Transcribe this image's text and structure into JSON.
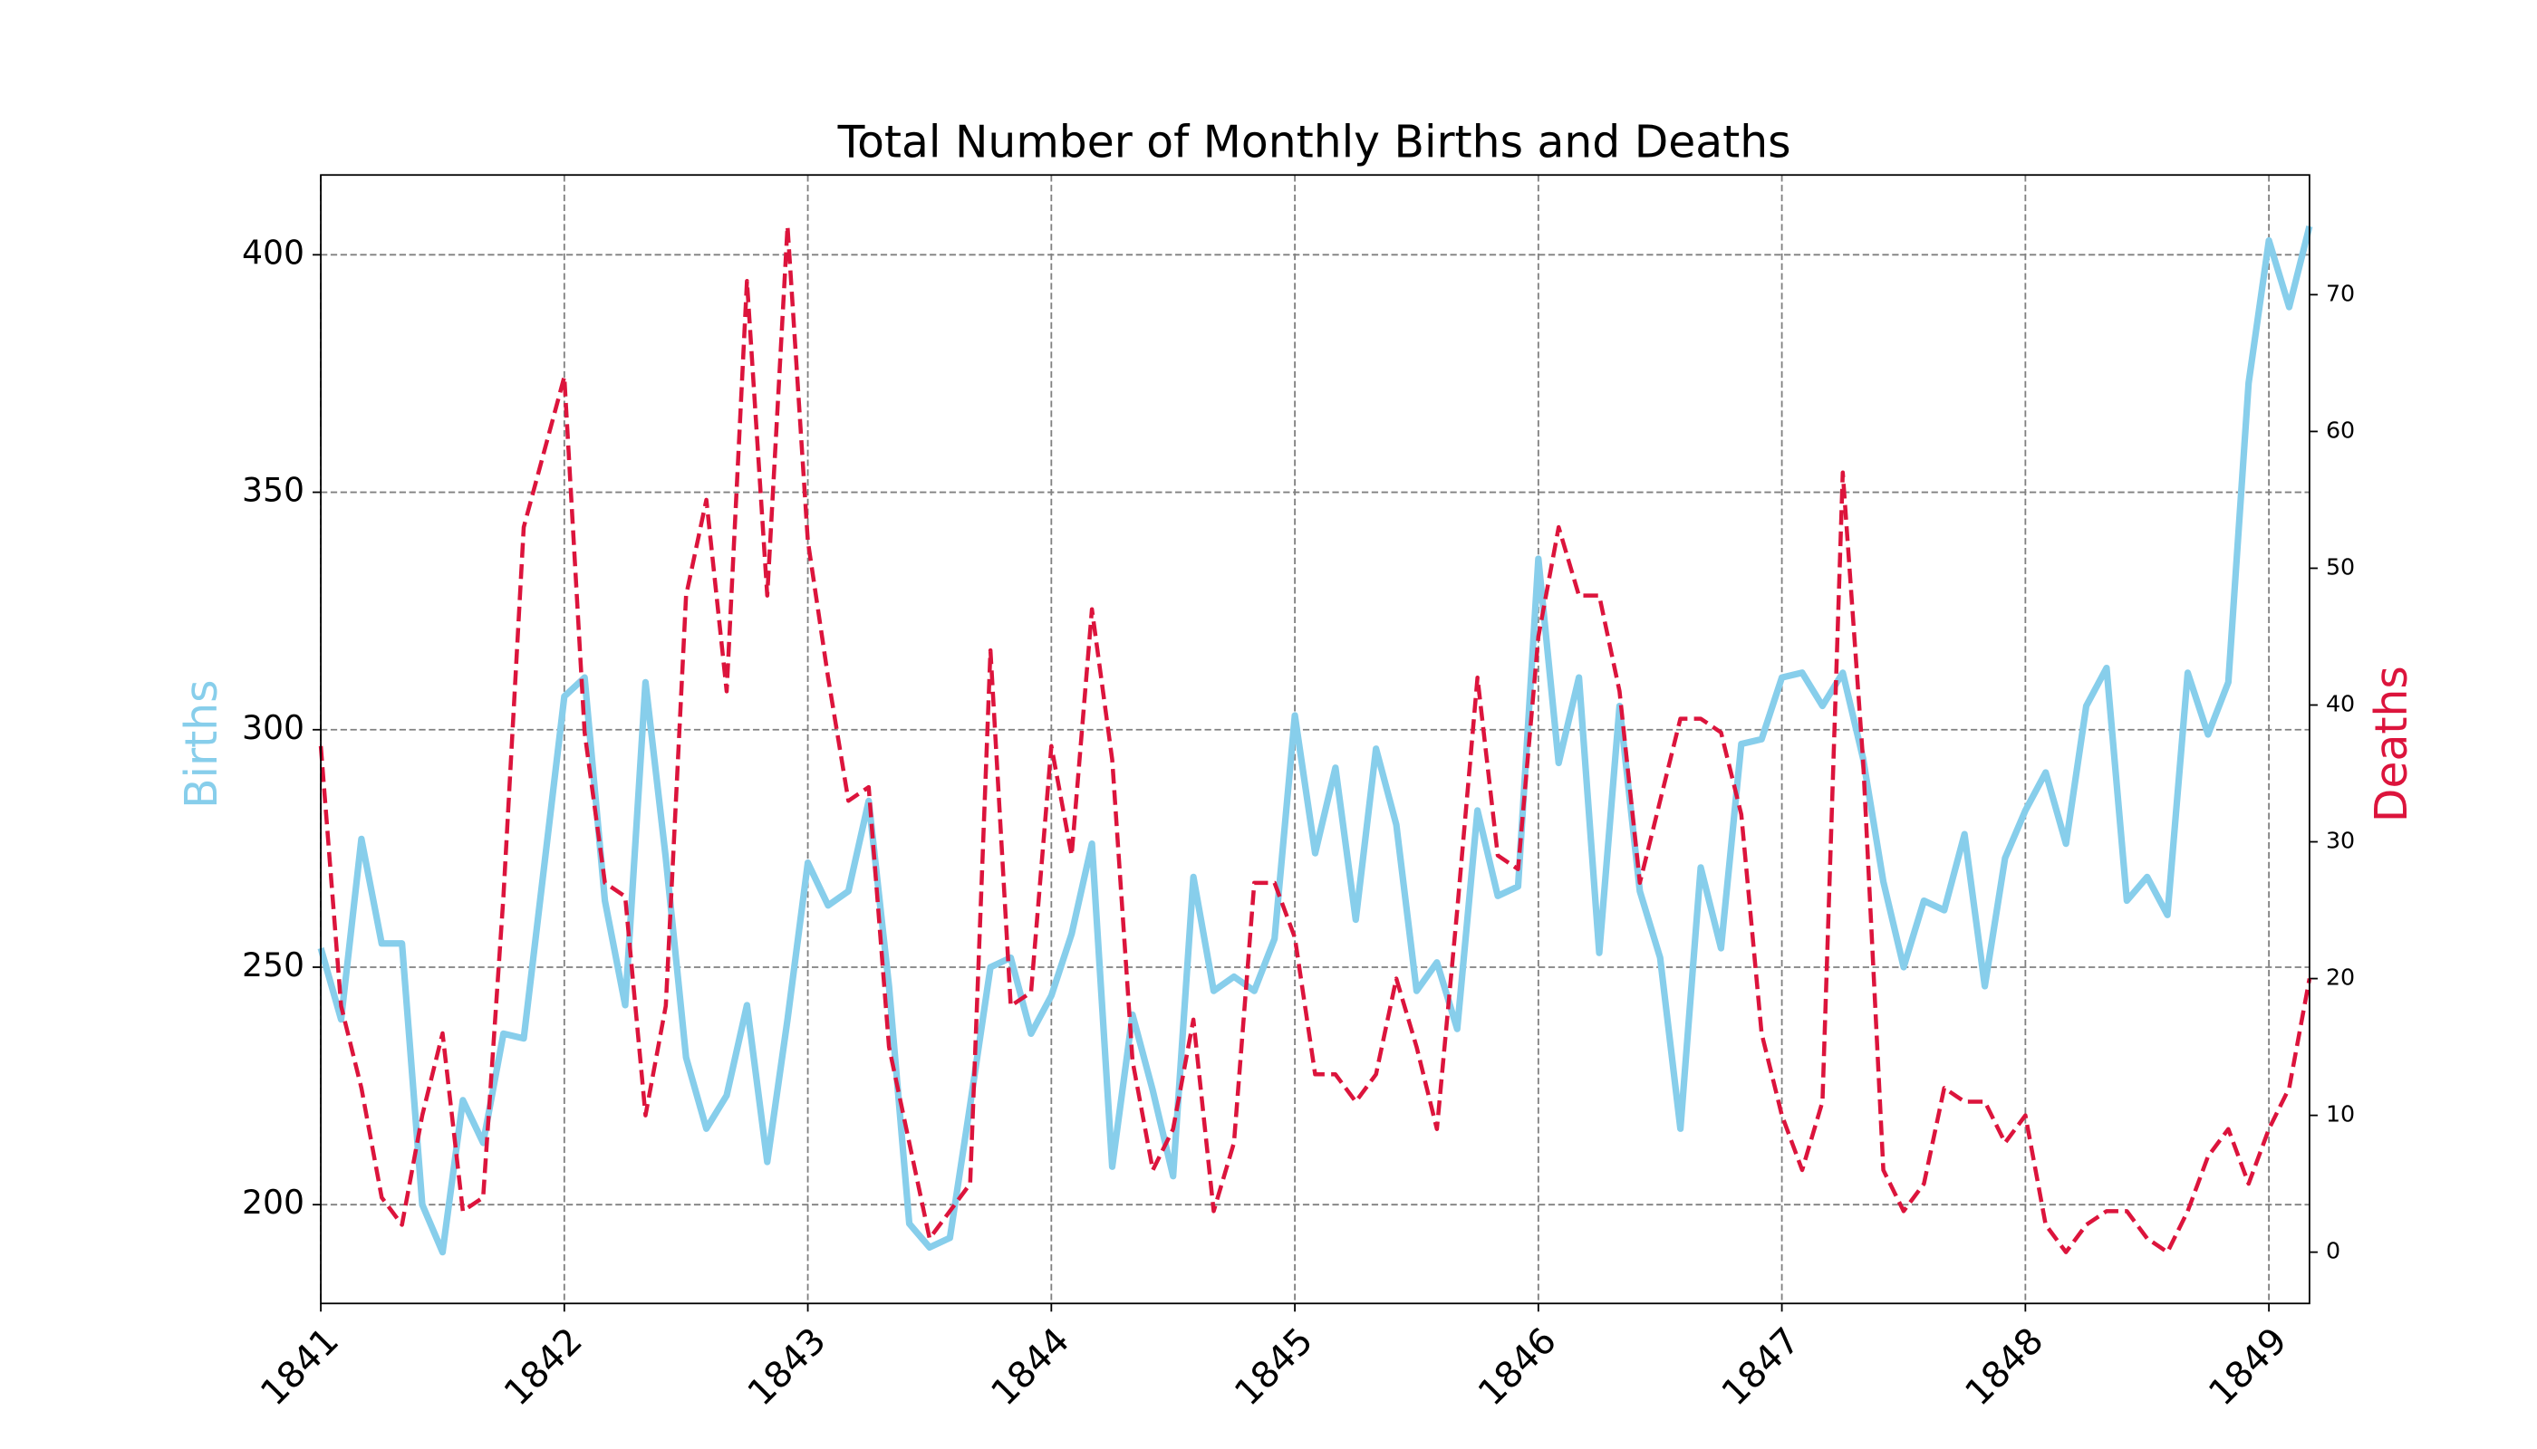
{
  "chart_data": {
    "type": "line",
    "title": "Total Number of Monthly Births and Deaths",
    "ylabel": "Births",
    "y2label": "Deaths",
    "x": [
      "1841-01",
      "1841-02",
      "1841-03",
      "1841-04",
      "1841-05",
      "1841-06",
      "1841-07",
      "1841-08",
      "1841-09",
      "1841-10",
      "1841-11",
      "1842-01",
      "1842-02",
      "1842-03",
      "1842-04",
      "1842-05",
      "1842-06",
      "1842-07",
      "1842-08",
      "1842-09",
      "1842-10",
      "1842-11",
      "1842-12",
      "1843-01",
      "1843-02",
      "1843-03",
      "1843-04",
      "1843-05",
      "1843-06",
      "1843-07",
      "1843-08",
      "1843-09",
      "1843-10",
      "1843-11",
      "1843-12",
      "1844-01",
      "1844-02",
      "1844-03",
      "1844-04",
      "1844-05",
      "1844-06",
      "1844-07",
      "1844-08",
      "1844-09",
      "1844-10",
      "1844-11",
      "1844-12",
      "1845-01",
      "1845-02",
      "1845-03",
      "1845-04",
      "1845-05",
      "1845-06",
      "1845-07",
      "1845-08",
      "1845-09",
      "1845-10",
      "1845-11",
      "1845-12",
      "1846-01",
      "1846-02",
      "1846-03",
      "1846-04",
      "1846-05",
      "1846-06",
      "1846-07",
      "1846-08",
      "1846-09",
      "1846-10",
      "1846-11",
      "1846-12",
      "1847-01",
      "1847-02",
      "1847-03",
      "1847-04",
      "1847-05",
      "1847-06",
      "1847-07",
      "1847-08",
      "1847-09",
      "1847-10",
      "1847-11",
      "1847-12",
      "1848-01",
      "1848-02",
      "1848-03",
      "1848-04",
      "1848-05",
      "1848-06",
      "1848-07",
      "1848-08",
      "1848-09",
      "1848-10",
      "1848-11",
      "1848-12",
      "1849-01",
      "1849-02",
      "1849-03"
    ],
    "series": [
      {
        "name": "Births",
        "color": "#87ceeb",
        "values": [
          254,
          239,
          277,
          255,
          255,
          200,
          190,
          222,
          213,
          236,
          235,
          307,
          311,
          264,
          242,
          310,
          273,
          231,
          216,
          223,
          242,
          209,
          239,
          272,
          263,
          266,
          285,
          246,
          196,
          191,
          193,
          221,
          250,
          252,
          236,
          244,
          257,
          276,
          208,
          240,
          224,
          206,
          269,
          245,
          248,
          245,
          256,
          303,
          274,
          292,
          260,
          296,
          280,
          245,
          251,
          237,
          283,
          265,
          267,
          336,
          293,
          311,
          253,
          305,
          266,
          252,
          216,
          271,
          254,
          297,
          298,
          311,
          312,
          305,
          312,
          294,
          268,
          250,
          264,
          262,
          278,
          246,
          273,
          283,
          291,
          276,
          305,
          313,
          264,
          269,
          261,
          312,
          299,
          310,
          373,
          403,
          389,
          406
        ]
      },
      {
        "name": "Deaths",
        "color": "#dc143c",
        "axis": "y2",
        "dashed": true,
        "values": [
          37,
          18,
          12,
          4,
          2,
          10,
          16,
          3,
          4,
          26,
          53,
          64,
          38,
          27,
          26,
          10,
          18,
          48,
          55,
          41,
          71,
          48,
          75,
          52,
          42,
          33,
          34,
          15,
          8,
          1,
          3,
          5,
          44,
          18,
          19,
          37,
          29,
          47,
          36,
          14,
          6,
          9,
          17,
          3,
          8,
          27,
          27,
          23,
          13,
          13,
          11,
          13,
          20,
          15,
          9,
          25,
          42,
          29,
          28,
          45,
          53,
          48,
          48,
          41,
          27,
          33,
          39,
          39,
          38,
          32,
          16,
          10,
          6,
          11,
          57,
          36,
          6,
          3,
          5,
          12,
          11,
          11,
          8,
          10,
          2,
          0,
          2,
          3,
          3,
          1,
          0,
          3,
          7,
          9,
          5,
          9,
          12,
          20
        ]
      }
    ],
    "xlim": [
      "1841-01",
      "1849-03"
    ],
    "xticks": [
      1841,
      1842,
      1843,
      1844,
      1845,
      1846,
      1847,
      1848,
      1849
    ],
    "ylim": [
      179.2,
      416.8
    ],
    "yticks": [
      200,
      250,
      300,
      350,
      400
    ],
    "y2lim": [
      -3.75,
      78.75
    ],
    "y2ticks": [
      0,
      10,
      20,
      30,
      40,
      50,
      60,
      70
    ],
    "grid": true
  }
}
